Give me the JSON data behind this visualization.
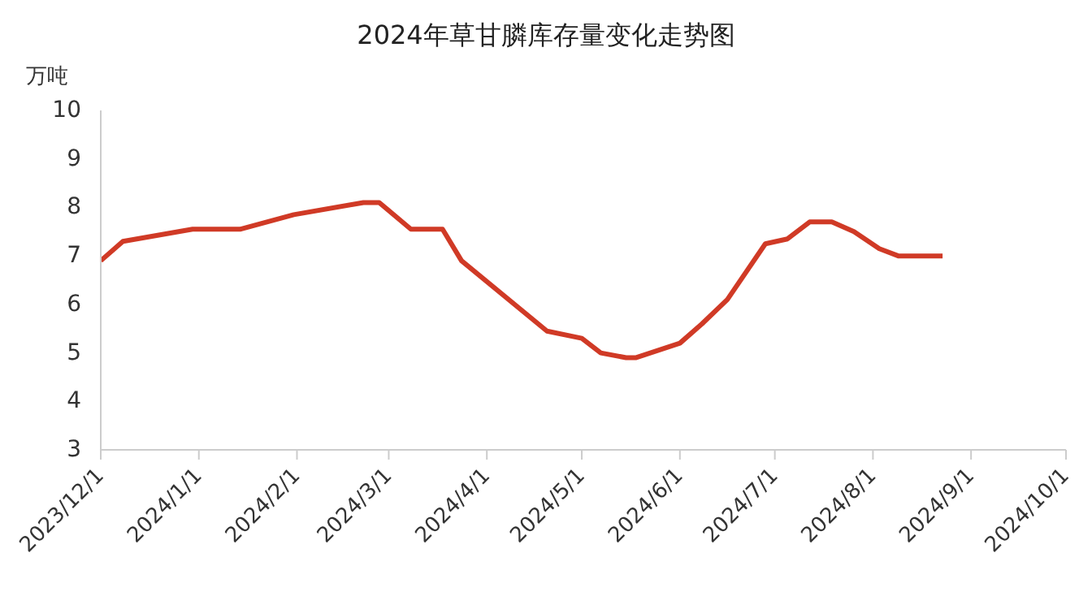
{
  "chart_data": {
    "type": "line",
    "title": "2024年草甘膦库存量变化走势图",
    "ylabel": "万吨",
    "x": [
      "2023-12-01",
      "2023-12-08",
      "2023-12-30",
      "2024-01-14",
      "2024-01-31",
      "2024-02-22",
      "2024-02-27",
      "2024-03-08",
      "2024-03-18",
      "2024-03-24",
      "2024-04-20",
      "2024-05-01",
      "2024-05-07",
      "2024-05-15",
      "2024-05-18",
      "2024-06-01",
      "2024-06-08",
      "2024-06-16",
      "2024-06-28",
      "2024-07-05",
      "2024-07-12",
      "2024-07-19",
      "2024-07-26",
      "2024-08-03",
      "2024-08-09",
      "2024-08-23"
    ],
    "series": [
      {
        "color": "#d03a26",
        "values": [
          6.9,
          7.3,
          7.55,
          7.55,
          7.85,
          8.1,
          8.1,
          7.55,
          7.55,
          6.9,
          5.45,
          5.3,
          5.0,
          4.9,
          4.9,
          5.2,
          5.6,
          6.1,
          7.25,
          7.35,
          7.7,
          7.7,
          7.5,
          7.15,
          7.0,
          7.0
        ]
      }
    ],
    "xlim": [
      "2023-12-01",
      "2024-10-01"
    ],
    "xticks": [
      {
        "value": "2023-12-01",
        "label": "2023/12/1"
      },
      {
        "value": "2024-01-01",
        "label": "2024/1/1"
      },
      {
        "value": "2024-02-01",
        "label": "2024/2/1"
      },
      {
        "value": "2024-03-01",
        "label": "2024/3/1"
      },
      {
        "value": "2024-04-01",
        "label": "2024/4/1"
      },
      {
        "value": "2024-05-01",
        "label": "2024/5/1"
      },
      {
        "value": "2024-06-01",
        "label": "2024/6/1"
      },
      {
        "value": "2024-07-01",
        "label": "2024/7/1"
      },
      {
        "value": "2024-08-01",
        "label": "2024/8/1"
      },
      {
        "value": "2024-09-01",
        "label": "2024/9/1"
      },
      {
        "value": "2024-10-01",
        "label": "2024/10/1"
      }
    ],
    "ylim": [
      3,
      10
    ],
    "yticks": [
      3,
      4,
      5,
      6,
      7,
      8,
      9,
      10
    ],
    "grid": false,
    "marker": "none",
    "line_style": "solid",
    "legend": false
  }
}
